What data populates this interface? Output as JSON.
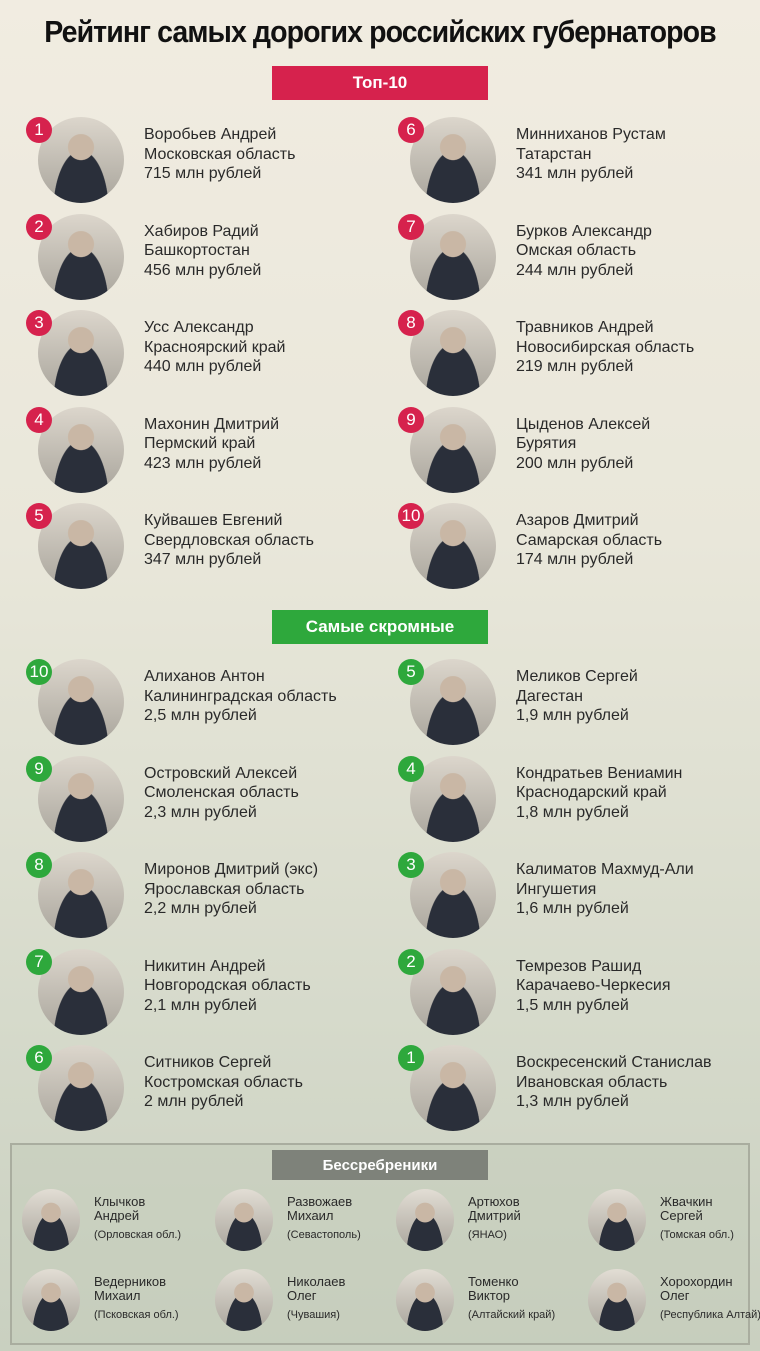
{
  "title": "Рейтинг самых дорогих российских губернаторов",
  "colors": {
    "top": "#d6224d",
    "modest": "#2ea83c",
    "free": "#7e827a"
  },
  "top10": {
    "label": "Топ-10",
    "items": [
      {
        "rank": "1",
        "name": "Воробьев Андрей",
        "region": "Московская область",
        "amount": "715 млн рублей"
      },
      {
        "rank": "2",
        "name": "Хабиров Радий",
        "region": "Башкортостан",
        "amount": "456  млн рублей"
      },
      {
        "rank": "3",
        "name": "Усс Александр",
        "region": "Красноярский край",
        "amount": "440  млн рублей"
      },
      {
        "rank": "4",
        "name": "Махонин Дмитрий",
        "region": "Пермский край",
        "amount": "423  млн рублей"
      },
      {
        "rank": "5",
        "name": "Куйвашев Евгений",
        "region": "Свердловская область",
        "amount": "347 млн рублей"
      },
      {
        "rank": "6",
        "name": "Минниханов Рустам",
        "region": "Татарстан",
        "amount": "341 млн рублей"
      },
      {
        "rank": "7",
        "name": "Бурков Александр",
        "region": "Омская область",
        "amount": "244 млн рублей"
      },
      {
        "rank": "8",
        "name": "Травников Андрей",
        "region": "Новосибирская область",
        "amount": "219 млн рублей"
      },
      {
        "rank": "9",
        "name": "Цыденов Алексей",
        "region": "Бурятия",
        "amount": "200 млн рублей"
      },
      {
        "rank": "10",
        "name": "Азаров Дмитрий",
        "region": "Самарская область",
        "amount": "174 млн рублей"
      }
    ]
  },
  "modest": {
    "label": "Самые скромные",
    "items": [
      {
        "rank": "10",
        "name": "Алиханов Антон",
        "region": "Калининградская область",
        "amount": "2,5 млн рублей"
      },
      {
        "rank": "9",
        "name": "Островский Алексей",
        "region": "Смоленская область",
        "amount": "2,3 млн рублей"
      },
      {
        "rank": "8",
        "name": "Миронов Дмитрий (экс)",
        "region": "Ярославская область",
        "amount": "2,2 млн рублей"
      },
      {
        "rank": "7",
        "name": "Никитин Андрей",
        "region": "Новгородская область",
        "amount": "2,1 млн рублей"
      },
      {
        "rank": "6",
        "name": "Ситников Сергей",
        "region": "Костромская область",
        "amount": "2 млн рублей"
      },
      {
        "rank": "5",
        "name": "Меликов Сергей",
        "region": "Дагестан",
        "amount": "1,9 млн рублей"
      },
      {
        "rank": "4",
        "name": "Кондратьев Вениамин",
        "region": "Краснодарский край",
        "amount": "1,8 млн рублей"
      },
      {
        "rank": "3",
        "name": "Калиматов Махмуд-Али",
        "region": "Ингушетия",
        "amount": "1,6 млн рублей"
      },
      {
        "rank": "2",
        "name": "Темрезов Рашид",
        "region": "Карачаево-Черкесия",
        "amount": "1,5 млн рублей"
      },
      {
        "rank": "1",
        "name": "Воскресенский Станислав",
        "region": "Ивановская область",
        "amount": "1,3 млн рублей"
      }
    ]
  },
  "free": {
    "label": "Бессребреники",
    "items": [
      {
        "surname": "Клычков",
        "first": "Андрей",
        "region": "(Орловская обл.)"
      },
      {
        "surname": "Развожаев",
        "first": "Михаил",
        "region": "(Севастополь)"
      },
      {
        "surname": "Артюхов",
        "first": "Дмитрий",
        "region": "(ЯНАО)"
      },
      {
        "surname": "Жвачкин",
        "first": "Сергей",
        "region": "(Томская обл.)"
      },
      {
        "surname": "Ведерников",
        "first": "Михаил",
        "region": "(Псковская обл.)"
      },
      {
        "surname": "Николаев",
        "first": "Олег",
        "region": "(Чувашия)"
      },
      {
        "surname": "Томенко",
        "first": "Виктор",
        "region": "(Алтайский край)"
      },
      {
        "surname": "Хорохордин",
        "first": "Олег",
        "region": "(Республика Алтай)"
      }
    ]
  }
}
